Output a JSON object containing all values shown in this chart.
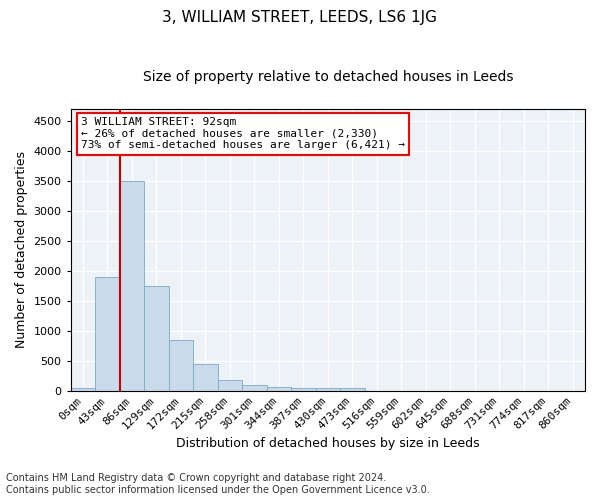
{
  "title": "3, WILLIAM STREET, LEEDS, LS6 1JG",
  "subtitle": "Size of property relative to detached houses in Leeds",
  "xlabel": "Distribution of detached houses by size in Leeds",
  "ylabel": "Number of detached properties",
  "bar_color": "#c9daea",
  "bar_edge_color": "#7aaac8",
  "categories": [
    "0sqm",
    "43sqm",
    "86sqm",
    "129sqm",
    "172sqm",
    "215sqm",
    "258sqm",
    "301sqm",
    "344sqm",
    "387sqm",
    "430sqm",
    "473sqm",
    "516sqm",
    "559sqm",
    "602sqm",
    "645sqm",
    "688sqm",
    "731sqm",
    "774sqm",
    "817sqm",
    "860sqm"
  ],
  "values": [
    50,
    1900,
    3500,
    1750,
    850,
    450,
    175,
    100,
    65,
    55,
    55,
    45,
    0,
    0,
    0,
    0,
    0,
    0,
    0,
    0,
    0
  ],
  "ylim": [
    0,
    4700
  ],
  "yticks": [
    0,
    500,
    1000,
    1500,
    2000,
    2500,
    3000,
    3500,
    4000,
    4500
  ],
  "red_line_x": 1.5,
  "annotation_line1": "3 WILLIAM STREET: 92sqm",
  "annotation_line2": "← 26% of detached houses are smaller (2,330)",
  "annotation_line3": "73% of semi-detached houses are larger (6,421) →",
  "annotation_box_color": "white",
  "annotation_box_edge_color": "red",
  "red_line_color": "#cc0000",
  "footer_line1": "Contains HM Land Registry data © Crown copyright and database right 2024.",
  "footer_line2": "Contains public sector information licensed under the Open Government Licence v3.0.",
  "background_color": "#edf2f7",
  "grid_color": "#ffffff",
  "title_fontsize": 11,
  "subtitle_fontsize": 10,
  "axis_label_fontsize": 9,
  "tick_fontsize": 8,
  "annotation_fontsize": 8,
  "footer_fontsize": 7
}
